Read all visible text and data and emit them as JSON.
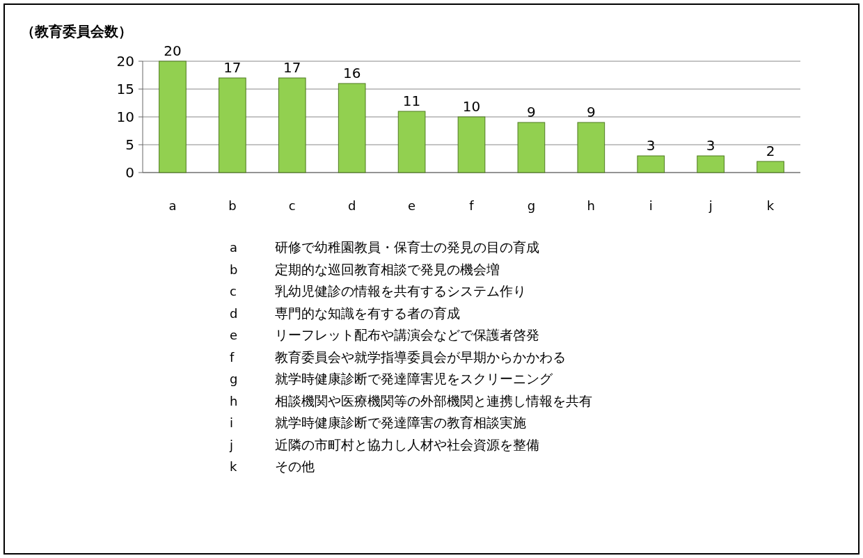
{
  "chart_data": {
    "type": "bar",
    "ylabel": "（教育委員会数）",
    "categories": [
      "a",
      "b",
      "c",
      "d",
      "e",
      "f",
      "g",
      "h",
      "i",
      "j",
      "k"
    ],
    "values": [
      20,
      17,
      17,
      16,
      11,
      10,
      9,
      9,
      3,
      3,
      2
    ],
    "color": "#92d050",
    "ylim": [
      0,
      20
    ],
    "yticks": [
      0,
      5,
      10,
      15,
      20
    ],
    "grid": "y",
    "data_labels": true,
    "annotations": [
      "a 研修で幼稚園教員・保育士の発見の目の育成",
      "b 定期的な巡回教育相談で発見の機会増",
      "c 乳幼児健診の情報を共有するシステム作り",
      "d 専門的な知識を有する者の育成",
      "e リーフレット配布や講演会などで保護者啓発",
      "f 教育委員会や就学指導委員会が早期からかかわる",
      "g 就学時健康診断で発達障害児をスクリーニング",
      "h 相談機関や医療機関等の外部機関と連携し情報を共有",
      "i 就学時健康診断で発達障害の教育相談実施",
      "j 近隣の市町村と協力し人材や社会資源を整備",
      "k その他"
    ]
  }
}
